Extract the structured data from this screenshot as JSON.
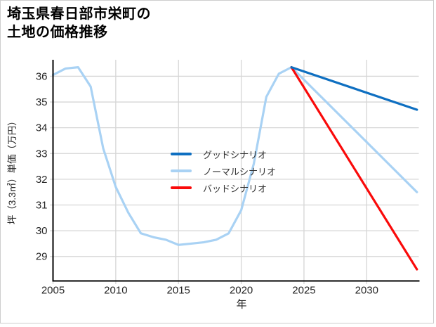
{
  "title": {
    "line1": "埼玉県春日部市栄町の",
    "line2": "土地の価格推移"
  },
  "chart_data": {
    "type": "line",
    "title": "埼玉県春日部市栄町の土地の価格推移",
    "xlabel": "年",
    "ylabel": "坪（3.3㎡）単価（万円）",
    "xlim": [
      2005,
      2034.15
    ],
    "ylim": [
      28.05,
      36.64
    ],
    "x_ticks": [
      2005,
      2010,
      2015,
      2020,
      2025,
      2030
    ],
    "y_ticks": [
      29,
      30,
      31,
      32,
      33,
      34,
      35,
      36
    ],
    "grid": true,
    "legend_position": "center-left",
    "series": [
      {
        "name": "グッドシナリオ",
        "id": "good-scenario",
        "color": "#0e6fc1",
        "x": [
          2024,
          2034
        ],
        "values": [
          36.35,
          34.7
        ]
      },
      {
        "name": "ノーマルシナリオ",
        "id": "normal-scenario",
        "color": "#a9d2f4",
        "x": [
          2005,
          2006,
          2007,
          2008,
          2009,
          2010,
          2011,
          2012,
          2013,
          2014,
          2015,
          2016,
          2017,
          2018,
          2019,
          2020,
          2021,
          2022,
          2023,
          2024,
          2034
        ],
        "values": [
          36.05,
          36.3,
          36.35,
          35.6,
          33.2,
          31.7,
          30.7,
          29.9,
          29.75,
          29.65,
          29.45,
          29.5,
          29.55,
          29.65,
          29.9,
          30.8,
          32.6,
          35.2,
          36.1,
          36.35,
          31.5
        ]
      },
      {
        "name": "バッドシナリオ",
        "id": "bad-scenario",
        "color": "#fa0a0a",
        "x": [
          2024,
          2034
        ],
        "values": [
          36.35,
          28.5
        ]
      }
    ]
  },
  "colors": {
    "grid": "#d6d6d6",
    "axis": "#000000",
    "tick_label": "#262626",
    "axis_label": "#262626",
    "legend_text": "#333333",
    "frame": "#cdcdcd"
  }
}
